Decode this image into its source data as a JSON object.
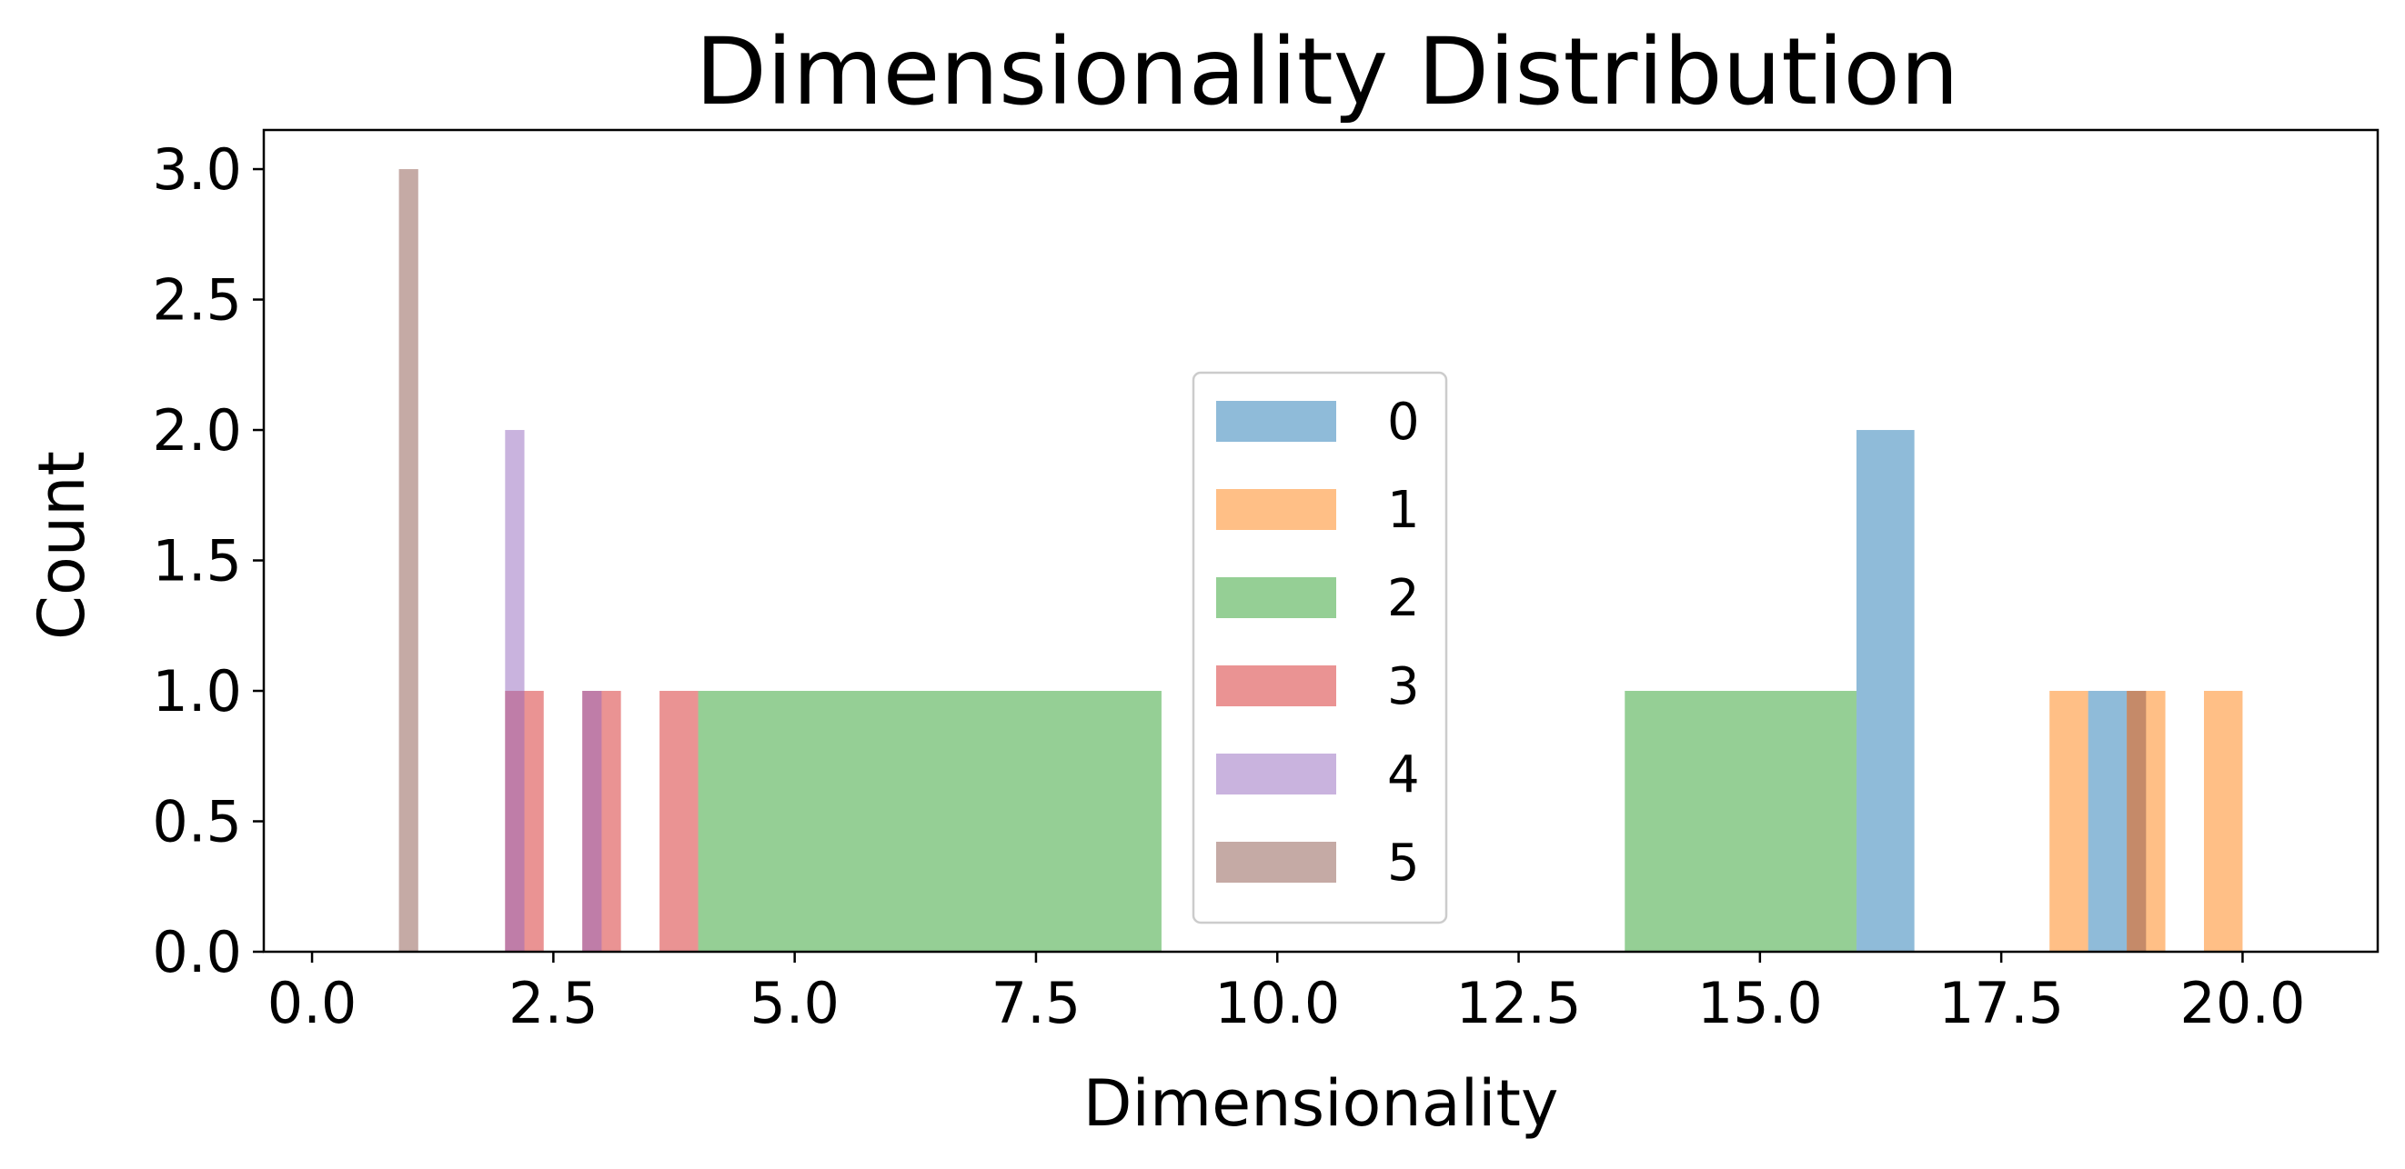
{
  "chart_data": {
    "type": "bar",
    "title": "Dimensionality Distribution",
    "xlabel": "Dimensionality",
    "ylabel": "Count",
    "xlim": [
      -0.5,
      21.4
    ],
    "ylim": [
      0,
      3.15
    ],
    "x_ticks": [
      "0.0",
      "2.5",
      "5.0",
      "7.5",
      "10.0",
      "12.5",
      "15.0",
      "17.5",
      "20.0"
    ],
    "y_ticks": [
      "0.0",
      "0.5",
      "1.0",
      "1.5",
      "2.0",
      "2.5",
      "3.0"
    ],
    "grid": false,
    "legend_position": "center",
    "series": [
      {
        "name": "0",
        "color": "#1f77b4",
        "bins": [
          {
            "x0": 16.0,
            "x1": 16.6,
            "count": 2
          },
          {
            "x0": 18.4,
            "x1": 18.8,
            "count": 1
          }
        ]
      },
      {
        "name": "1",
        "color": "#ff7f0e",
        "bins": [
          {
            "x0": 18.0,
            "x1": 18.4,
            "count": 1
          },
          {
            "x0": 18.8,
            "x1": 19.2,
            "count": 1
          },
          {
            "x0": 19.6,
            "x1": 20.0,
            "count": 1
          }
        ]
      },
      {
        "name": "2",
        "color": "#2ca02c",
        "bins": [
          {
            "x0": 4.0,
            "x1": 8.8,
            "count": 1
          },
          {
            "x0": 13.6,
            "x1": 16.0,
            "count": 1
          }
        ]
      },
      {
        "name": "3",
        "color": "#d62728",
        "bins": [
          {
            "x0": 2.0,
            "x1": 2.4,
            "count": 1
          },
          {
            "x0": 2.8,
            "x1": 3.2,
            "count": 1
          },
          {
            "x0": 3.6,
            "x1": 4.0,
            "count": 1
          }
        ]
      },
      {
        "name": "4",
        "color": "#9467bd",
        "bins": [
          {
            "x0": 2.0,
            "x1": 2.2,
            "count": 2
          },
          {
            "x0": 2.8,
            "x1": 3.0,
            "count": 1
          }
        ]
      },
      {
        "name": "5",
        "color": "#8c564b",
        "bins": [
          {
            "x0": 0.9,
            "x1": 1.1,
            "count": 3
          },
          {
            "x0": 18.8,
            "x1": 19.0,
            "count": 1
          }
        ]
      }
    ]
  }
}
